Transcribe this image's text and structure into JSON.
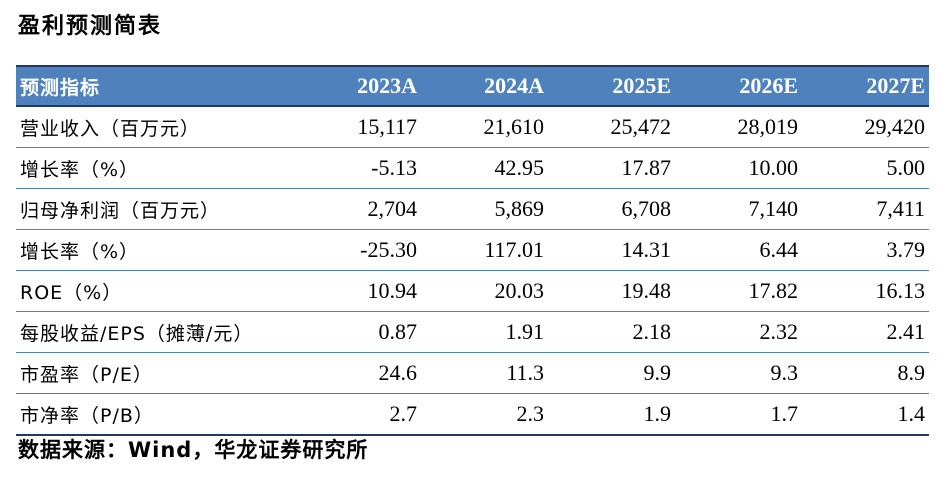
{
  "title": "盈利预测简表",
  "table": {
    "header": [
      "预测指标",
      "2023A",
      "2024A",
      "2025E",
      "2026E",
      "2027E"
    ],
    "rows": [
      {
        "label": "营业收入（百万元）",
        "values": [
          "15,117",
          "21,610",
          "25,472",
          "28,019",
          "29,420"
        ]
      },
      {
        "label": "增长率（%）",
        "values": [
          "-5.13",
          "42.95",
          "17.87",
          "10.00",
          "5.00"
        ]
      },
      {
        "label": "归母净利润（百万元）",
        "values": [
          "2,704",
          "5,869",
          "6,708",
          "7,140",
          "7,411"
        ]
      },
      {
        "label": "增长率（%）",
        "values": [
          "-25.30",
          "117.01",
          "14.31",
          "6.44",
          "3.79"
        ]
      },
      {
        "label": "ROE（%）",
        "values": [
          "10.94",
          "20.03",
          "19.48",
          "17.82",
          "16.13"
        ]
      },
      {
        "label": "每股收益/EPS（摊薄/元）",
        "values": [
          "0.87",
          "1.91",
          "2.18",
          "2.32",
          "2.41"
        ]
      },
      {
        "label": "市盈率（P/E）",
        "values": [
          "24.6",
          "11.3",
          "9.9",
          "9.3",
          "8.9"
        ]
      },
      {
        "label": "市净率（P/B）",
        "values": [
          "2.7",
          "2.3",
          "1.9",
          "1.7",
          "1.4"
        ]
      }
    ]
  },
  "source": "数据来源：Wind，华龙证券研究所",
  "colors": {
    "header_bg": "#4f81bd",
    "rule": "#4f81bd",
    "header_text": "#ffffff"
  }
}
